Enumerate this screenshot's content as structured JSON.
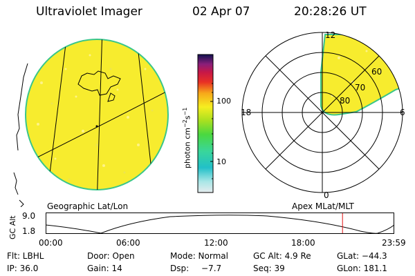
{
  "header": {
    "instrument": "Ultraviolet Imager",
    "date": "02 Apr 07",
    "time": "20:28:26 UT"
  },
  "colorbar": {
    "unit_label": "photon cm",
    "unit_sup1": "−2",
    "unit_mid": "s",
    "unit_sup2": "−1",
    "ticks": [
      "100",
      "10"
    ]
  },
  "left_panel": {
    "caption": "Geographic Lat/Lon"
  },
  "polar_panel": {
    "caption": "Apex MLat/MLT",
    "mlt_labels": {
      "top": "12",
      "left": "18",
      "right": "6",
      "bottom": "0"
    },
    "lat_labels": [
      "60",
      "70",
      "80"
    ]
  },
  "timeline": {
    "ylabel": "GC Alt",
    "ymax": "9.0",
    "ymin": "1.8",
    "xticks": [
      "00:00",
      "06:00",
      "12:00",
      "18:00",
      "23:59"
    ],
    "marker_hour": 20.47
  },
  "info": {
    "row1": {
      "flt": "Flt: LBHL",
      "door": "Door: Open",
      "mode": "Mode: Normal",
      "gcalt": "GC Alt: 4.9 Re",
      "glat": "GLat: −44.3"
    },
    "row2": {
      "ip": "IP: 36.0",
      "gain": "Gain: 14",
      "dsp_label": "Dsp:",
      "dsp_value": "−7.7",
      "seq": "Seq: 39",
      "glon": "GLon: 181.1"
    }
  }
}
